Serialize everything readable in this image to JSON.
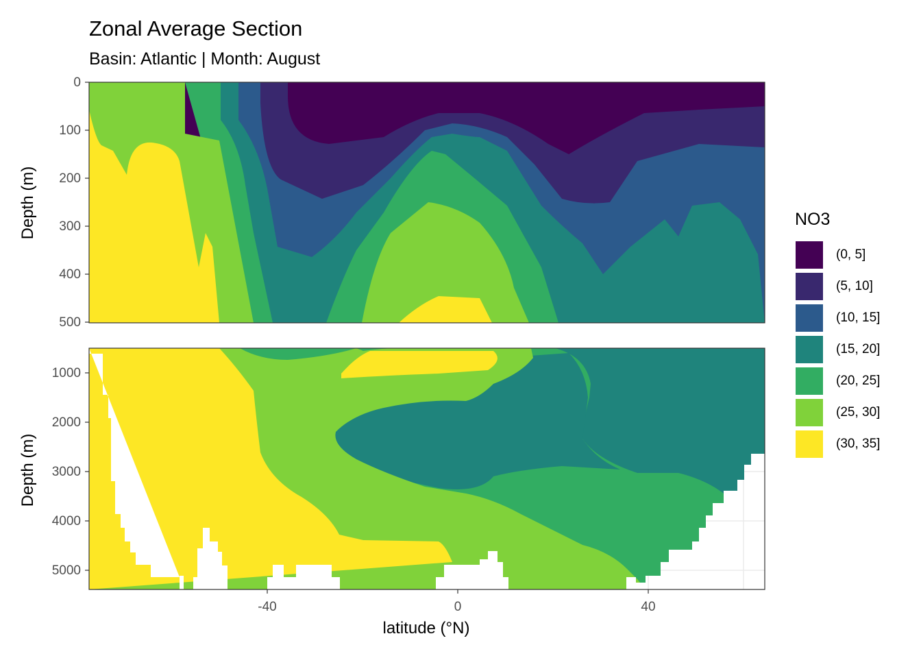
{
  "chart_data": {
    "type": "contour",
    "title": "Zonal Average Section",
    "subtitle": "Basin: Atlantic | Month: August",
    "xlabel": "latitude (°N)",
    "ylabel": "Depth (m)",
    "x_ticks": [
      "-40",
      "0",
      "40"
    ],
    "xlim": [
      -78,
      64
    ],
    "legend": {
      "title": "NO3",
      "position": "right",
      "bins": [
        {
          "label": "(0, 5]",
          "color": "#440154"
        },
        {
          "label": "(5, 10]",
          "color": "#39286E"
        },
        {
          "label": "(10, 15]",
          "color": "#2C5A8C"
        },
        {
          "label": "(15, 20]",
          "color": "#1F847C"
        },
        {
          "label": "(20, 25]",
          "color": "#32AD62"
        },
        {
          "label": "(25, 30]",
          "color": "#80D23A"
        },
        {
          "label": "(30, 35]",
          "color": "#FDE725"
        }
      ]
    },
    "panels": [
      {
        "name": "upper",
        "ylim": [
          0,
          500
        ],
        "y_ticks": [
          "0",
          "100",
          "200",
          "300",
          "400",
          "500"
        ],
        "contours": [
          {
            "bin": 1,
            "lat": [
              -35,
              -30,
              -20,
              -10,
              0,
              10,
              20,
              30,
              40,
              50,
              64
            ],
            "depth": [
              0,
              0,
              0,
              0,
              0,
              0,
              0,
              0,
              0,
              0,
              0
            ],
            "lower": [
              130,
              140,
              110,
              80,
              60,
              80,
              120,
              145,
              110,
              80,
              50
            ]
          },
          {
            "bin": 2,
            "lat": [
              -36,
              -30,
              -20,
              -10,
              0,
              10,
              20,
              25,
              40,
              50,
              64
            ],
            "depth": [
              0,
              0,
              0,
              0,
              0,
              0,
              0,
              0,
              0,
              0,
              0
            ],
            "lower": [
              250,
              280,
              210,
              120,
              80,
              140,
              270,
              255,
              170,
              130,
              140
            ]
          },
          {
            "bin": 3,
            "lat": [
              -42,
              -35,
              -25,
              -10,
              0,
              10,
              20,
              30,
              40,
              50,
              64
            ],
            "depth": [
              0,
              0,
              0,
              0,
              0,
              0,
              0,
              0,
              0,
              0,
              0
            ],
            "lower": [
              500,
              360,
              320,
              170,
              150,
              210,
              330,
              390,
              360,
              290,
              500
            ]
          },
          {
            "bin": 4,
            "lat": [
              -47,
              -40,
              -30,
              -10,
              0,
              10,
              20
            ],
            "depth": [
              0,
              0,
              0,
              0,
              0,
              0,
              0
            ],
            "lower": [
              500,
              500,
              500,
              240,
              160,
              300,
              500
            ]
          },
          {
            "bin": 5,
            "lat": [
              -52,
              -45,
              -20,
              -5,
              5,
              15
            ],
            "depth": [
              0,
              0,
              0,
              0,
              0,
              0
            ],
            "lower": [
              500,
              500,
              500,
              255,
              290,
              500
            ]
          },
          {
            "bin": 6,
            "lat": [
              -78,
              -57,
              -50,
              -40,
              -15,
              -5,
              5,
              10
            ],
            "depth": [
              0,
              0,
              0,
              0,
              0,
              0,
              0,
              0
            ],
            "lower": [
              140,
              140,
              500,
              500,
              500,
              440,
              450,
              500
            ]
          }
        ]
      },
      {
        "name": "lower",
        "ylim": [
          500,
          5400
        ],
        "y_ticks": [
          "1000",
          "2000",
          "3000",
          "4000",
          "5000"
        ],
        "contours": [
          {
            "bin": 3,
            "lat": [
              22,
              30,
              40,
              50,
              60,
              64
            ],
            "depth": [
              500,
              900,
              1800,
              2500,
              3100,
              3600
            ],
            "note": "deep (15, 20] water north"
          },
          {
            "bin": 4,
            "lat": [
              -25,
              -10,
              0,
              10,
              20,
              30,
              40,
              50
            ],
            "depth": [
              2300,
              1700,
              1400,
              1600,
              2100,
              3400,
              4500,
              5200
            ]
          },
          {
            "bin": 5,
            "lat": [
              -45,
              -30,
              -10,
              0,
              10,
              20,
              30
            ],
            "depth": [
              600,
              1800,
              3000,
              4000,
              4800,
              5300,
              5400
            ]
          },
          {
            "bin": 6,
            "lat": [
              -75,
              -50,
              -40,
              -25,
              -10,
              -5
            ],
            "depth": [
              5200,
              600,
              1000,
              3500,
              4400,
              4800
            ]
          }
        ]
      }
    ]
  }
}
